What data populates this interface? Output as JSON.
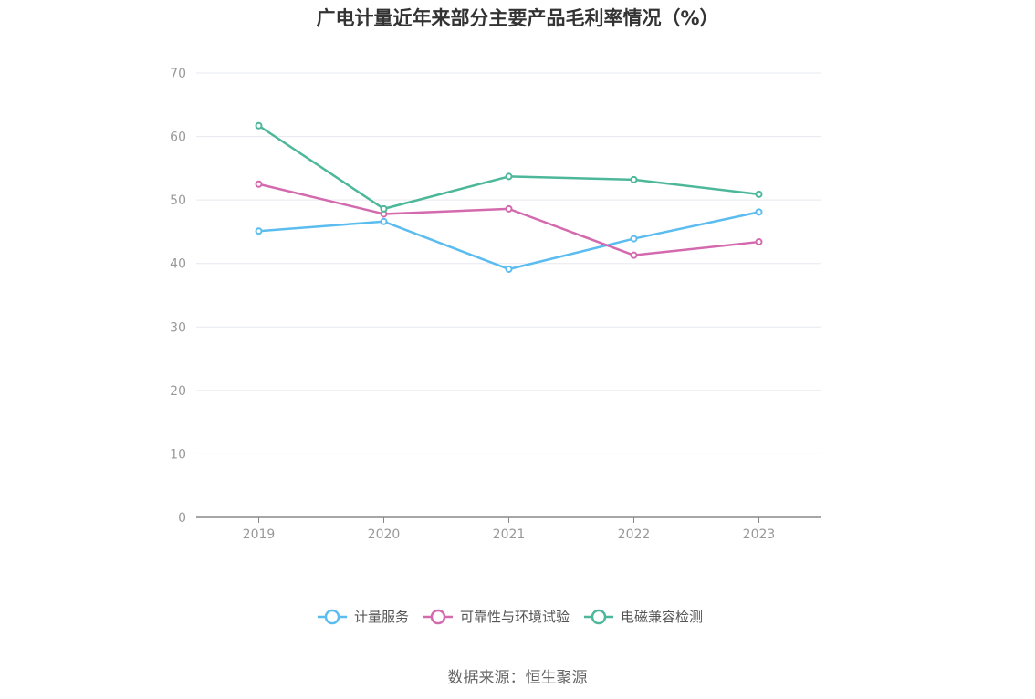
{
  "chart_data": {
    "type": "line",
    "title": "广电计量近年来部分主要产品毛利率情况（%）",
    "x": [
      "2019",
      "2020",
      "2021",
      "2022",
      "2023"
    ],
    "ylim": [
      0,
      70
    ],
    "yticks": [
      0,
      10,
      20,
      30,
      40,
      50,
      60,
      70
    ],
    "grid": true,
    "legend_position": "bottom",
    "series": [
      {
        "name": "计量服务",
        "color": "#5bbcef",
        "values": [
          45.1,
          46.6,
          39.1,
          43.9,
          48.1
        ]
      },
      {
        "name": "可靠性与环境试验",
        "color": "#d46aae",
        "values": [
          52.5,
          47.8,
          48.6,
          41.3,
          43.4
        ]
      },
      {
        "name": "电磁兼容检测",
        "color": "#4db79a",
        "values": [
          61.7,
          48.6,
          53.7,
          53.2,
          50.9
        ]
      }
    ]
  },
  "source": "数据来源：恒生聚源"
}
